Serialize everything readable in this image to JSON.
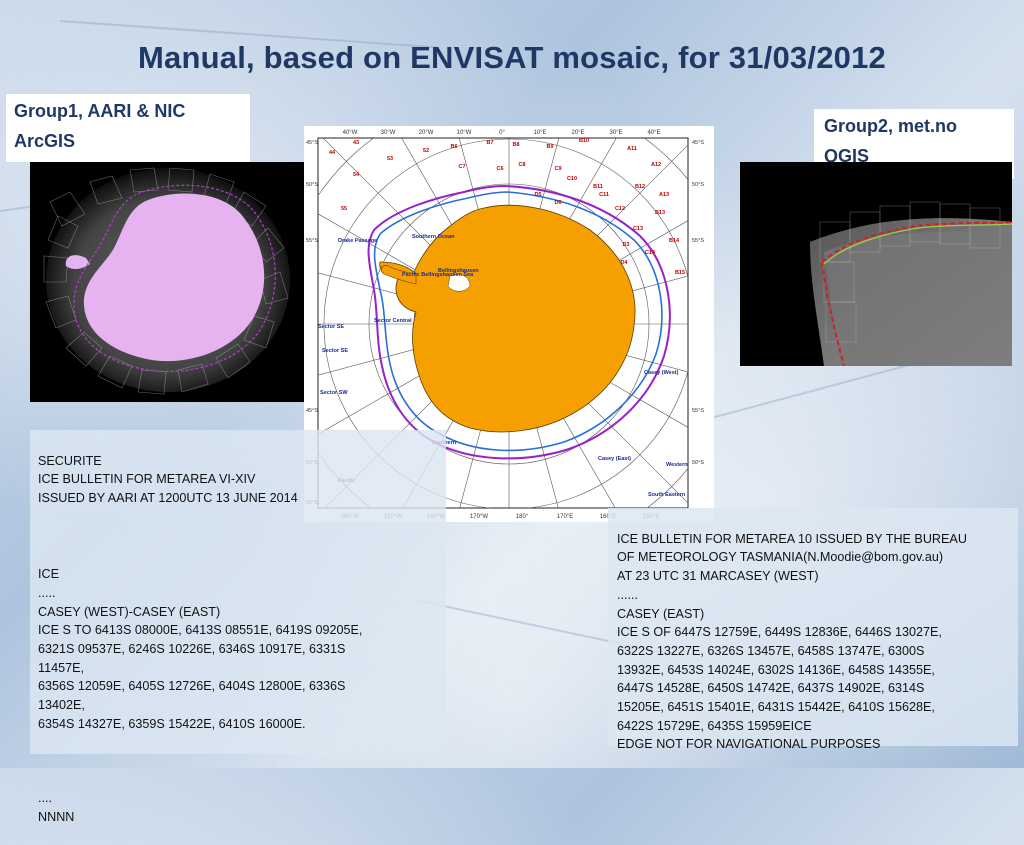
{
  "title": "Manual, based on ENVISAT mosaic, for 31/03/2012",
  "group1": {
    "line1": "Group1, AARI & NIC",
    "line2": "ArcGIS"
  },
  "group2": {
    "line1": "Group2, met.no",
    "line2": "QGIS"
  },
  "bulletin_aari": {
    "header": "SECURITE\nICE BULLETIN FOR METAREA VI-XIV\nISSUED BY AARI AT 1200UTC 13 JUNE 2014",
    "body": "ICE\n.....\nCASEY (WEST)-CASEY (EAST)\nICE S TO 6413S 08000E, 6413S 08551E, 6419S 09205E,\n6321S 09537E, 6246S 10226E, 6346S 10917E, 6331S\n11457E,\n6356S 12059E, 6405S 12726E, 6404S 12800E, 6336S\n13402E,\n6354S 14327E, 6359S 15422E, 6410S 16000E.",
    "footer": "....\nNNNN"
  },
  "bulletin_bom": {
    "body": "ICE BULLETIN FOR METAREA 10 ISSUED BY THE BUREAU\nOF METEOROLOGY TASMANIA(N.Moodie@bom.gov.au)\nAT 23 UTC 31 MARCASEY (WEST)\n......\nCASEY (EAST)\nICE S OF 6447S 12759E, 6449S 12836E, 6446S 13027E,\n6322S 13227E, 6326S 13457E, 6458S 13747E, 6300S\n13932E, 6453S 14024E, 6302S 14136E, 6458S 14355E,\n6447S 14528E, 6450S 14742E, 6437S 14902E, 6314S\n15205E, 6451S 15401E, 6431S 15442E, 6410S 15628E,\n6422S 15729E, 6435S 15959EICE\nEDGE NOT FOR NAVIGATIONAL PURPOSES"
  },
  "map": {
    "top_lon_labels": [
      "40°W",
      "30°W",
      "20°W",
      "10°W",
      "0°",
      "10°E",
      "20°E",
      "30°E",
      "40°E"
    ],
    "bottom_lon_labels": [
      "160°W",
      "150°W",
      "160°W",
      "170°W",
      "180°",
      "170°E",
      "160°E",
      "150°E"
    ],
    "left_lat_labels": [
      "45°S",
      "50°S",
      "55°S",
      "45°S",
      "50°S",
      "55°S"
    ],
    "right_lat_labels": [
      "45°S",
      "50°S",
      "55°S",
      "55°S",
      "50°S"
    ],
    "grid_cells": [
      "43",
      "44",
      "53",
      "52",
      "54",
      "55",
      "B6",
      "B7",
      "B8",
      "B9",
      "B10",
      "A11",
      "C6",
      "C7",
      "C8",
      "C9",
      "C10",
      "B11",
      "A12",
      "C11",
      "B12",
      "A13",
      "D5",
      "D6",
      "C12",
      "B13",
      "C13",
      "B14",
      "D4",
      "C14",
      "D3",
      "B15"
    ],
    "sectors": [
      "Southern Ocean",
      "Drake Passage",
      "Pacific Bellingshausen Sea",
      "Bellingshausen",
      "Sector Central",
      "Sector SE",
      "Sector SE",
      "Sector SW",
      "Southern",
      "Casey (West)",
      "Casey (East)",
      "Western",
      "South Eastern",
      "Pacific"
    ]
  },
  "colors": {
    "title": "#1f3864",
    "antarctica_fill": "#f5a000",
    "edge_purple": "#9a20c8",
    "edge_blue": "#2a6fd8",
    "mosaic_pink": "#e6b3f0"
  }
}
